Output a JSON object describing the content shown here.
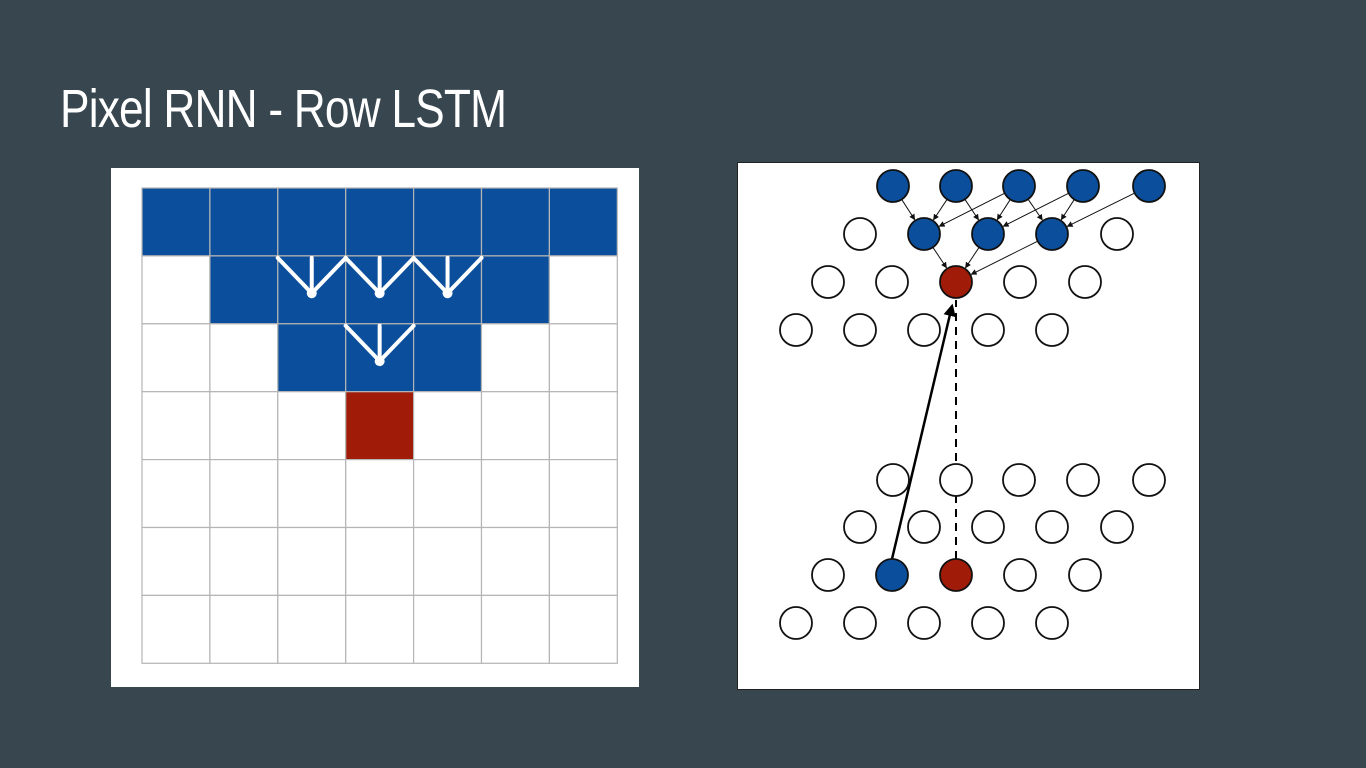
{
  "slide": {
    "title": "Pixel RNN - Row LSTM"
  },
  "colors": {
    "background": "#37464f",
    "context_blue": "#0b4f9c",
    "current_red": "#a01c08",
    "grid_line": "#b5b5b5",
    "node_stroke": "#111111"
  },
  "left_diagram": {
    "kind": "pixel-grid",
    "rows": 7,
    "cols": 7,
    "blue_cells": [
      [
        0,
        0
      ],
      [
        0,
        1
      ],
      [
        0,
        2
      ],
      [
        0,
        3
      ],
      [
        0,
        4
      ],
      [
        0,
        5
      ],
      [
        0,
        6
      ],
      [
        1,
        1
      ],
      [
        1,
        2
      ],
      [
        1,
        3
      ],
      [
        1,
        4
      ],
      [
        1,
        5
      ],
      [
        2,
        2
      ],
      [
        2,
        3
      ],
      [
        2,
        4
      ]
    ],
    "red_cells": [
      [
        3,
        3
      ]
    ],
    "connector_row1_centers": [
      2,
      3,
      4
    ],
    "connector_row2_centers": [
      3
    ]
  },
  "right_diagram": {
    "kind": "row-lstm-dependency",
    "icons": {
      "solid_arrow": "arrow-solid",
      "dashed_arrow": "arrow-dashed"
    }
  }
}
